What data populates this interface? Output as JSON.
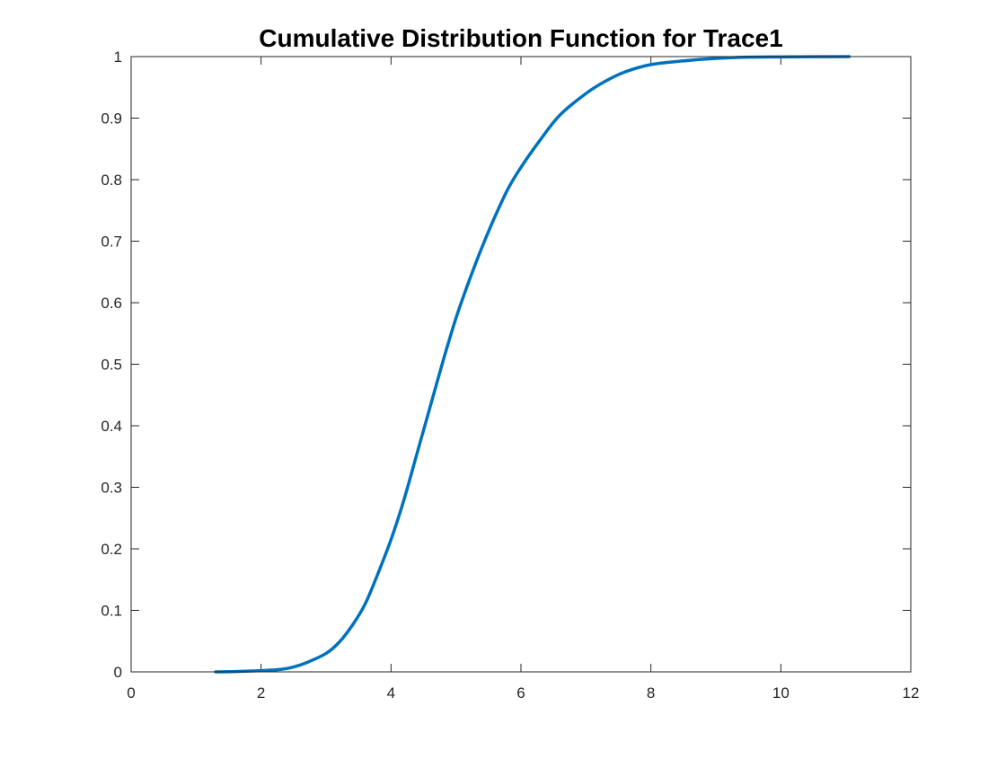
{
  "chart_data": {
    "type": "line",
    "title": "Cumulative Distribution Function for Trace1",
    "xlabel": "",
    "ylabel": "",
    "xlim": [
      0,
      12
    ],
    "ylim": [
      0,
      1
    ],
    "xticks": [
      0,
      2,
      4,
      6,
      8,
      10,
      12
    ],
    "xtick_labels": [
      "0",
      "2",
      "4",
      "6",
      "8",
      "10",
      "12"
    ],
    "yticks": [
      0,
      0.1,
      0.2,
      0.3,
      0.4,
      0.5,
      0.6,
      0.7,
      0.8,
      0.9,
      1
    ],
    "ytick_labels": [
      "0",
      "0.1",
      "0.2",
      "0.3",
      "0.4",
      "0.5",
      "0.6",
      "0.7",
      "0.8",
      "0.9",
      "1"
    ],
    "grid": false,
    "legend": "none",
    "series_color": "#0072BD",
    "series": [
      {
        "x": [
          1.3,
          1.6,
          2.0,
          2.3,
          2.5,
          2.7,
          3.0,
          3.2,
          3.4,
          3.6,
          3.8,
          4.0,
          4.2,
          4.4,
          4.6,
          4.8,
          5.0,
          5.2,
          5.4,
          5.6,
          5.8,
          6.0,
          6.3,
          6.6,
          7.0,
          7.3,
          7.6,
          8.0,
          8.5,
          9.0,
          9.5,
          10.0,
          10.5,
          11.05
        ],
        "y": [
          0.0,
          0.0005,
          0.002,
          0.004,
          0.008,
          0.015,
          0.03,
          0.048,
          0.075,
          0.11,
          0.16,
          0.215,
          0.28,
          0.355,
          0.43,
          0.505,
          0.575,
          0.635,
          0.69,
          0.74,
          0.785,
          0.82,
          0.865,
          0.905,
          0.94,
          0.96,
          0.975,
          0.987,
          0.993,
          0.997,
          0.999,
          0.9995,
          0.9998,
          1.0
        ]
      }
    ]
  }
}
